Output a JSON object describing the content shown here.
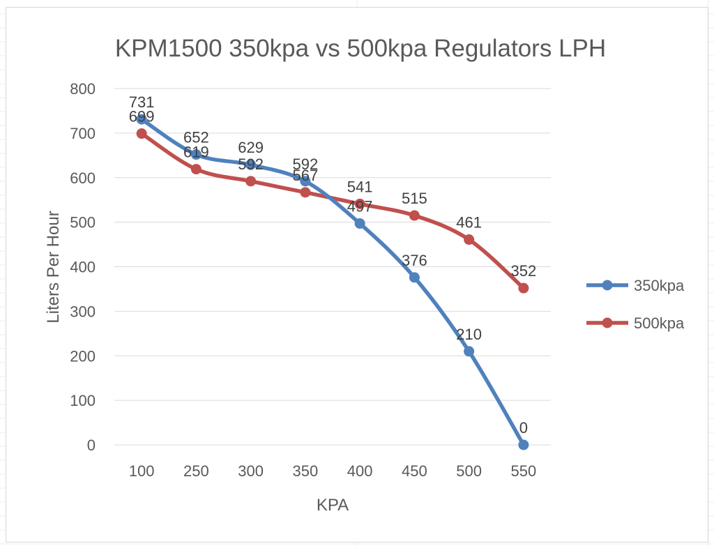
{
  "chart_data": {
    "type": "line",
    "title": "KPM1500 350kpa vs 500kpa Regulators LPH",
    "xlabel": "KPA",
    "ylabel": "Liters Per Hour",
    "categories": [
      "100",
      "250",
      "300",
      "350",
      "400",
      "450",
      "500",
      "550"
    ],
    "ylim": [
      0,
      800
    ],
    "yticks": [
      "0",
      "100",
      "200",
      "300",
      "400",
      "500",
      "600",
      "700",
      "800"
    ],
    "grid": true,
    "legend_position": "right",
    "series": [
      {
        "name": "350kpa",
        "color": "#4f81bd",
        "values": [
          731,
          652,
          629,
          592,
          497,
          376,
          210,
          0
        ]
      },
      {
        "name": "500kpa",
        "color": "#c0504d",
        "values": [
          699,
          619,
          592,
          567,
          541,
          515,
          461,
          352
        ]
      }
    ]
  }
}
